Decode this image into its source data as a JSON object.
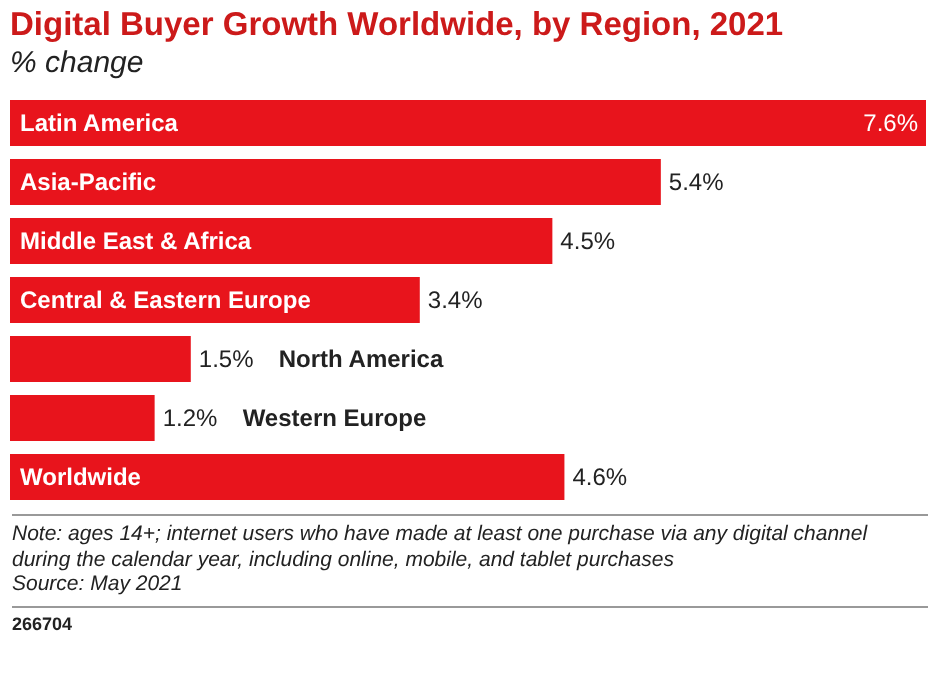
{
  "chart_data": {
    "type": "bar",
    "orientation": "horizontal",
    "title": "Digital Buyer Growth Worldwide, by Region, 2021",
    "subtitle": "% change",
    "categories": [
      "Latin America",
      "Asia-Pacific",
      "Middle East & Africa",
      "Central & Eastern Europe",
      "North America",
      "Western Europe",
      "Worldwide"
    ],
    "values": [
      7.6,
      5.4,
      4.5,
      3.4,
      1.5,
      1.2,
      4.6
    ],
    "value_labels": [
      "7.6%",
      "5.4%",
      "4.5%",
      "3.4%",
      "1.5%",
      "1.2%",
      "4.6%"
    ],
    "color": "#e8141c",
    "annotations": [
      "Note: ages 14+; internet users who have made at least one purchase via any digital channel during the calendar year, including online, mobile, and tablet purchases",
      "Source: May 2021",
      "266704"
    ]
  }
}
